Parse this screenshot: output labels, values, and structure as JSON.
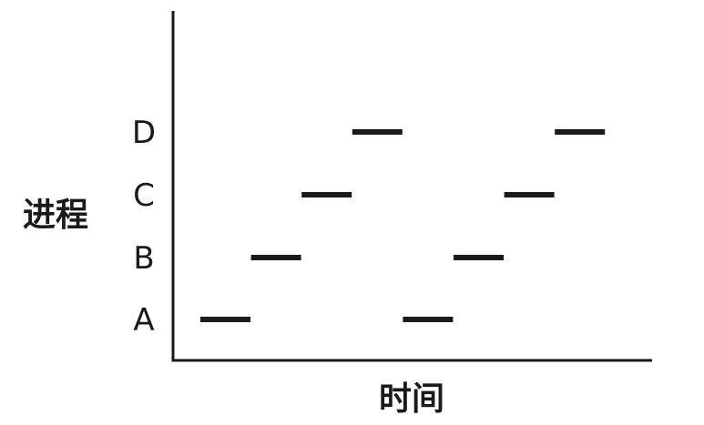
{
  "chart_data": {
    "type": "timeline",
    "xlabel": "时间",
    "ylabel": "进程",
    "categories": [
      "A",
      "B",
      "C",
      "D"
    ],
    "time_slots": 8,
    "segments": [
      {
        "process": "A",
        "start": 0,
        "end": 1
      },
      {
        "process": "B",
        "start": 1,
        "end": 2
      },
      {
        "process": "C",
        "start": 2,
        "end": 3
      },
      {
        "process": "D",
        "start": 3,
        "end": 4
      },
      {
        "process": "A",
        "start": 4,
        "end": 5
      },
      {
        "process": "B",
        "start": 5,
        "end": 6
      },
      {
        "process": "C",
        "start": 6,
        "end": 7
      },
      {
        "process": "D",
        "start": 7,
        "end": 8
      }
    ],
    "grid": false,
    "colors": {
      "line": "#1a1a1a"
    }
  }
}
